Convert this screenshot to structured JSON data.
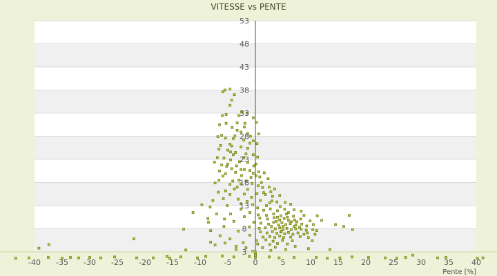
{
  "chart_data": {
    "type": "scatter",
    "title": "VITESSE vs PENTE",
    "xlabel": "Pente [%]",
    "ylabel": "",
    "xlim": [
      -40,
      40
    ],
    "ylim": [
      3,
      53
    ],
    "x_ticks": [
      -40,
      -35,
      -30,
      -25,
      -20,
      -15,
      -10,
      -5,
      0,
      5,
      10,
      15,
      20,
      25,
      30,
      35,
      40
    ],
    "y_ticks": [
      3,
      8,
      13,
      18,
      23,
      28,
      33,
      38,
      43,
      48,
      53
    ],
    "y_tick_labels": [
      "3",
      "8",
      "13",
      "18",
      "23",
      "28",
      "33",
      "38",
      "43",
      "48",
      "53"
    ],
    "grid": "horizontal bands",
    "colors": {
      "background": "#eef2d8",
      "band_light": "#ffffff",
      "band_dark": "#f0f0f0",
      "marker": "#6b7a10",
      "axis": "#4a5a20"
    },
    "series": [
      {
        "values": [
          [
            -4.6,
            38.2
          ],
          [
            -5.5,
            38.0
          ],
          [
            -5.9,
            37.6
          ],
          [
            -3.8,
            37.0
          ],
          [
            -4.3,
            35.8
          ],
          [
            -4.6,
            34.7
          ],
          [
            -2.5,
            33.2
          ],
          [
            -3.0,
            32.5
          ],
          [
            -5.3,
            32.7
          ],
          [
            -6.0,
            32.5
          ],
          [
            -1.5,
            33.0
          ],
          [
            -0.4,
            32.0
          ],
          [
            0.2,
            31.0
          ],
          [
            -1.9,
            30.8
          ],
          [
            -3.3,
            30.9
          ],
          [
            -5.3,
            30.8
          ],
          [
            -6.5,
            30.5
          ],
          [
            -4.2,
            29.9
          ],
          [
            -3.3,
            29.3
          ],
          [
            -2.6,
            28.9
          ],
          [
            -1.4,
            28.6
          ],
          [
            -0.9,
            28.0
          ],
          [
            0.6,
            28.5
          ],
          [
            -3.7,
            28.1
          ],
          [
            -6.1,
            28.2
          ],
          [
            -6.8,
            27.9
          ],
          [
            -5.4,
            27.6
          ],
          [
            -2.1,
            27.2
          ],
          [
            -0.4,
            27.0
          ],
          [
            0.3,
            26.4
          ],
          [
            -4.6,
            26.3
          ],
          [
            -4.3,
            25.9
          ],
          [
            -2.6,
            25.7
          ],
          [
            -1.4,
            25.4
          ],
          [
            -5.0,
            25.0
          ],
          [
            -6.6,
            25.2
          ],
          [
            -4.5,
            24.6
          ],
          [
            -3.6,
            24.5
          ],
          [
            -1.7,
            24.2
          ],
          [
            -0.4,
            24.0
          ],
          [
            0.4,
            23.5
          ],
          [
            -2.1,
            23.4
          ],
          [
            -5.7,
            23.3
          ],
          [
            -6.9,
            23.4
          ],
          [
            -4.5,
            22.9
          ],
          [
            -2.9,
            22.5
          ],
          [
            -1.4,
            22.3
          ],
          [
            0.1,
            22.0
          ],
          [
            -0.3,
            21.6
          ],
          [
            -3.4,
            21.6
          ],
          [
            -5.2,
            21.5
          ],
          [
            -6.1,
            21.8
          ],
          [
            -7.4,
            22.4
          ],
          [
            -4.3,
            21.0
          ],
          [
            -2.6,
            20.8
          ],
          [
            -1.0,
            20.6
          ],
          [
            0.6,
            20.3
          ],
          [
            1.6,
            20.1
          ],
          [
            -0.4,
            20.0
          ],
          [
            -3.6,
            20.2
          ],
          [
            -5.4,
            19.9
          ],
          [
            -5.9,
            19.4
          ],
          [
            -2.5,
            19.5
          ],
          [
            -0.8,
            19.1
          ],
          [
            0.8,
            19.2
          ],
          [
            2.3,
            18.8
          ],
          [
            -1.7,
            18.3
          ],
          [
            -4.1,
            18.3
          ],
          [
            -6.6,
            18.5
          ],
          [
            -7.3,
            17.9
          ],
          [
            -4.6,
            17.6
          ],
          [
            -2.6,
            17.7
          ],
          [
            -0.6,
            17.8
          ],
          [
            0.5,
            17.3
          ],
          [
            1.3,
            16.9
          ],
          [
            2.5,
            17.0
          ],
          [
            3.5,
            16.6
          ],
          [
            -1.4,
            16.5
          ],
          [
            -3.8,
            16.6
          ],
          [
            -5.4,
            16.2
          ],
          [
            -6.7,
            15.9
          ],
          [
            -4.6,
            15.4
          ],
          [
            -2.0,
            15.5
          ],
          [
            0.3,
            15.6
          ],
          [
            1.8,
            15.4
          ],
          [
            3.1,
            15.0
          ],
          [
            4.4,
            15.2
          ],
          [
            -0.7,
            14.8
          ],
          [
            -3.1,
            14.4
          ],
          [
            -5.8,
            14.5
          ],
          [
            -7.7,
            14.1
          ],
          [
            -1.5,
            13.9
          ],
          [
            0.9,
            14.1
          ],
          [
            2.6,
            13.6
          ],
          [
            3.9,
            13.8
          ],
          [
            5.4,
            13.7
          ],
          [
            6.4,
            13.3
          ],
          [
            -0.5,
            13.2
          ],
          [
            -2.6,
            13.4
          ],
          [
            -5.1,
            13.0
          ],
          [
            -8.2,
            12.7
          ],
          [
            -9.7,
            13.2
          ],
          [
            -2.6,
            12.2
          ],
          [
            0.4,
            12.5
          ],
          [
            1.5,
            12.0
          ],
          [
            2.7,
            12.3
          ],
          [
            4.0,
            11.9
          ],
          [
            5.3,
            12.2
          ],
          [
            7.0,
            12.1
          ],
          [
            8.3,
            11.8
          ],
          [
            -1.0,
            11.5
          ],
          [
            -4.5,
            11.2
          ],
          [
            -7.0,
            11.2
          ],
          [
            -11.3,
            11.5
          ],
          [
            0.5,
            11.0
          ],
          [
            2.0,
            10.9
          ],
          [
            3.3,
            11.2
          ],
          [
            4.6,
            10.8
          ],
          [
            5.6,
            11.2
          ],
          [
            6.9,
            10.7
          ],
          [
            8.8,
            10.9
          ],
          [
            11.2,
            10.8
          ],
          [
            -2.0,
            10.6
          ],
          [
            -5.6,
            10.1
          ],
          [
            -8.6,
            10.2
          ],
          [
            0.8,
            10.3
          ],
          [
            2.2,
            10.1
          ],
          [
            3.4,
            10.4
          ],
          [
            4.4,
            9.9
          ],
          [
            5.2,
            10.2
          ],
          [
            6.0,
            9.8
          ],
          [
            7.1,
            9.9
          ],
          [
            8.2,
            10.1
          ],
          [
            9.9,
            9.7
          ],
          [
            12.0,
            9.8
          ],
          [
            17.0,
            10.9
          ],
          [
            -0.3,
            9.4
          ],
          [
            -3.9,
            9.6
          ],
          [
            -8.5,
            9.4
          ],
          [
            1.0,
            9.2
          ],
          [
            2.4,
            9.0
          ],
          [
            3.3,
            9.4
          ],
          [
            4.2,
            8.8
          ],
          [
            4.8,
            9.3
          ],
          [
            5.5,
            8.9
          ],
          [
            6.3,
            9.1
          ],
          [
            7.3,
            8.8
          ],
          [
            8.4,
            9.0
          ],
          [
            9.3,
            8.6
          ],
          [
            10.5,
            8.9
          ],
          [
            14.5,
            8.9
          ],
          [
            -1.1,
            8.4
          ],
          [
            -5.7,
            8.5
          ],
          [
            0.7,
            8.1
          ],
          [
            1.8,
            8.2
          ],
          [
            2.9,
            8.5
          ],
          [
            3.6,
            8.0
          ],
          [
            4.4,
            8.2
          ],
          [
            5.0,
            7.8
          ],
          [
            5.7,
            8.1
          ],
          [
            6.5,
            7.8
          ],
          [
            7.3,
            8.0
          ],
          [
            8.3,
            7.9
          ],
          [
            9.2,
            7.7
          ],
          [
            10.4,
            7.8
          ],
          [
            11.1,
            7.6
          ],
          [
            16.0,
            8.5
          ],
          [
            17.6,
            7.8
          ],
          [
            -3.1,
            7.5
          ],
          [
            -8.1,
            7.6
          ],
          [
            -13.0,
            7.9
          ],
          [
            0.9,
            7.3
          ],
          [
            2.1,
            7.1
          ],
          [
            3.1,
            7.4
          ],
          [
            3.9,
            7.0
          ],
          [
            4.6,
            7.3
          ],
          [
            5.3,
            6.9
          ],
          [
            6.0,
            7.2
          ],
          [
            6.8,
            6.8
          ],
          [
            7.7,
            7.1
          ],
          [
            8.8,
            6.8
          ],
          [
            9.4,
            7.1
          ],
          [
            10.8,
            6.8
          ],
          [
            -1.0,
            6.6
          ],
          [
            -6.4,
            6.5
          ],
          [
            1.4,
            6.2
          ],
          [
            2.6,
            6.3
          ],
          [
            3.5,
            6.1
          ],
          [
            4.4,
            6.4
          ],
          [
            5.1,
            6.1
          ],
          [
            6.4,
            6.2
          ],
          [
            8.1,
            6.3
          ],
          [
            9.6,
            6.1
          ],
          [
            -4.6,
            5.8
          ],
          [
            -22.0,
            5.8
          ],
          [
            0.2,
            5.4
          ],
          [
            1.9,
            5.6
          ],
          [
            3.2,
            5.3
          ],
          [
            4.9,
            5.5
          ],
          [
            6.7,
            5.4
          ],
          [
            10.3,
            5.4
          ],
          [
            -2.2,
            5.0
          ],
          [
            -5.5,
            4.9
          ],
          [
            -8.1,
            5.1
          ],
          [
            0.4,
            4.7
          ],
          [
            2.6,
            4.6
          ],
          [
            4.0,
            4.8
          ],
          [
            5.8,
            4.7
          ],
          [
            -3.5,
            4.2
          ],
          [
            -7.3,
            4.5
          ],
          [
            -37.4,
            4.6
          ],
          [
            -1.7,
            3.9
          ],
          [
            1.3,
            3.9
          ],
          [
            3.6,
            4.0
          ],
          [
            7.2,
            4.2
          ],
          [
            -39.2,
            3.8
          ],
          [
            -12.6,
            3.4
          ],
          [
            -3.5,
            3.5
          ],
          [
            -0.5,
            3.1
          ],
          [
            2.8,
            3.3
          ],
          [
            5.5,
            3.5
          ],
          [
            9.6,
            3.7
          ],
          [
            13.5,
            3.5
          ],
          [
            0.0,
            3.0
          ],
          [
            0.0,
            2.7
          ],
          [
            0.0,
            2.4
          ],
          [
            0.0,
            2.1
          ],
          [
            0.0,
            1.8
          ],
          [
            -1.1,
            2.0
          ],
          [
            -3.9,
            1.9
          ],
          [
            -6.0,
            2.1
          ],
          [
            -9.0,
            2.0
          ],
          [
            -10.5,
            1.7
          ],
          [
            -13.5,
            1.9
          ],
          [
            -15.5,
            1.6
          ],
          [
            -16.0,
            2.0
          ],
          [
            -18.5,
            1.7
          ],
          [
            -21.5,
            1.7
          ],
          [
            -25.5,
            1.9
          ],
          [
            -28.0,
            1.7
          ],
          [
            -30.0,
            1.8
          ],
          [
            -32.0,
            1.7
          ],
          [
            -33.5,
            1.8
          ],
          [
            -35.0,
            1.6
          ],
          [
            -37.5,
            1.8
          ],
          [
            -41.0,
            1.7
          ],
          [
            -43.4,
            1.6
          ],
          [
            2.5,
            1.9
          ],
          [
            4.3,
            1.7
          ],
          [
            7.0,
            1.8
          ],
          [
            11.0,
            1.8
          ],
          [
            13.0,
            1.6
          ],
          [
            15.3,
            1.7
          ],
          [
            17.5,
            1.9
          ],
          [
            20.5,
            1.8
          ],
          [
            23.5,
            1.7
          ],
          [
            25.6,
            1.6
          ],
          [
            27.2,
            1.8
          ],
          [
            28.5,
            2.3
          ],
          [
            33.0,
            1.7
          ],
          [
            34.5,
            1.8
          ],
          [
            40.2,
            1.6
          ],
          [
            41.2,
            1.7
          ],
          [
            -2.0,
            20.8
          ],
          [
            -4.0,
            27.5
          ],
          [
            -3.0,
            18.5
          ],
          [
            1.5,
            15.8
          ],
          [
            3.0,
            14.0
          ],
          [
            6.0,
            11.5
          ],
          [
            7.5,
            9.5
          ],
          [
            -5.0,
            22.0
          ],
          [
            -6.3,
            26.0
          ],
          [
            -1.0,
            26.5
          ],
          [
            0.1,
            19.5
          ],
          [
            2.0,
            13.0
          ],
          [
            4.0,
            10.5
          ],
          [
            5.0,
            8.5
          ],
          [
            6.5,
            9.5
          ],
          [
            -4.0,
            24.0
          ],
          [
            -2.0,
            30.0
          ],
          [
            -6.5,
            20.5
          ],
          [
            -3.3,
            17.0
          ],
          [
            1.1,
            18.0
          ],
          [
            2.8,
            16.0
          ],
          [
            4.5,
            12.8
          ],
          [
            5.8,
            10.5
          ],
          [
            7.0,
            8.5
          ],
          [
            8.0,
            8.3
          ],
          [
            3.8,
            9.6
          ],
          [
            4.7,
            7.5
          ]
        ]
      }
    ]
  }
}
